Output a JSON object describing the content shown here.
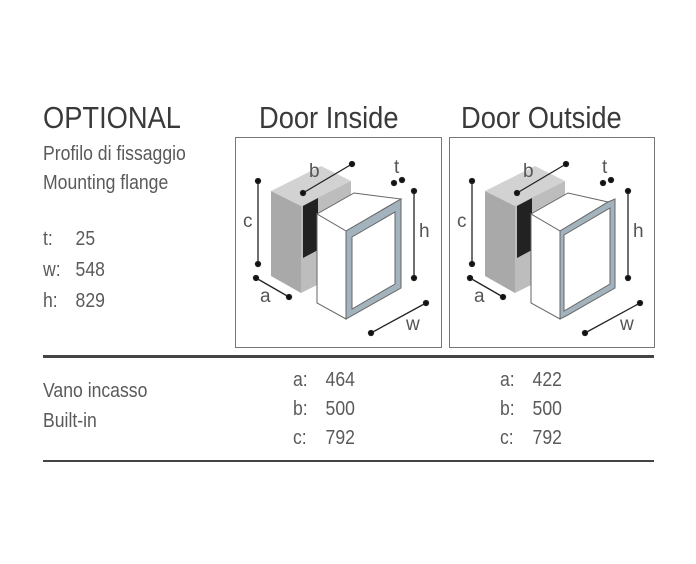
{
  "optional": {
    "title": "OPTIONAL",
    "subtitle_it": "Profilo di fissaggio",
    "subtitle_en": "Mounting flange",
    "specs": [
      {
        "label": "t:",
        "value": "25"
      },
      {
        "label": "w:",
        "value": "548"
      },
      {
        "label": "h:",
        "value": "829"
      }
    ]
  },
  "columns": [
    {
      "title": "Door Inside",
      "builtin": [
        {
          "label": "a:",
          "value": "464"
        },
        {
          "label": "b:",
          "value": "500"
        },
        {
          "label": "c:",
          "value": "792"
        }
      ]
    },
    {
      "title": "Door Outside",
      "builtin": [
        {
          "label": "a:",
          "value": "422"
        },
        {
          "label": "b:",
          "value": "500"
        },
        {
          "label": "c:",
          "value": "792"
        }
      ]
    }
  ],
  "diagram_labels": {
    "a": "a",
    "b": "b",
    "c": "c",
    "h": "h",
    "t": "t",
    "w": "w"
  },
  "builtin": {
    "label_it": "Vano incasso",
    "label_en": "Built-in"
  },
  "colors": {
    "frame": "#a3b3bd",
    "cabinet_dark": "#222222",
    "cabinet_light": "#d2d2d2"
  }
}
